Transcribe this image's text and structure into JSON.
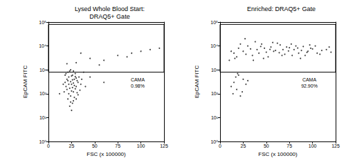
{
  "chart_data": [
    {
      "type": "scatter",
      "title": "Lysed Whole Blood Start:\nDRAQ5+ Gate",
      "x_label": "FSC (x 100000)",
      "y_label": "EpCAM FITC",
      "color": "#111111",
      "marker": "dot",
      "log": "y",
      "grid": false,
      "xlim": [
        0,
        125
      ],
      "xticks": [
        0,
        25,
        50,
        75,
        100,
        125
      ],
      "ylim": [
        1,
        100000
      ],
      "yticks": [
        {
          "value": 1,
          "label": "10⁰"
        },
        {
          "value": 10,
          "label": "10¹"
        },
        {
          "value": 100,
          "label": "10²"
        },
        {
          "value": 1000,
          "label": "10³"
        },
        {
          "value": 10000,
          "label": "10⁴"
        },
        {
          "value": 100000,
          "label": "10⁵"
        }
      ],
      "gate": {
        "x": [
          0,
          125
        ],
        "y": [
          800,
          80000
        ],
        "label": "CAMA",
        "percent": "0.98%"
      },
      "x": [
        18,
        20,
        22,
        24,
        25,
        26,
        27,
        28,
        30,
        32,
        21,
        23,
        26,
        29,
        31,
        19,
        24,
        27,
        33,
        22,
        25,
        28,
        30,
        20,
        26,
        24,
        17,
        35,
        23,
        29,
        21,
        27,
        25,
        31,
        18,
        34,
        22,
        26,
        28,
        24,
        19,
        32,
        25,
        27,
        23,
        36,
        16,
        30,
        21,
        29,
        40,
        45,
        60,
        12,
        38,
        30,
        45,
        60,
        75,
        90,
        100,
        110,
        20,
        55,
        85,
        120,
        35
      ],
      "values": [
        300,
        150,
        500,
        80,
        250,
        600,
        120,
        400,
        200,
        90,
        60,
        900,
        40,
        700,
        350,
        200,
        1000,
        50,
        500,
        250,
        130,
        70,
        450,
        400,
        180,
        320,
        120,
        250,
        30,
        160,
        800,
        280,
        550,
        110,
        600,
        140,
        100,
        380,
        220,
        45,
        700,
        300,
        20,
        900,
        170,
        400,
        250,
        60,
        350,
        520,
        200,
        500,
        300,
        100,
        800,
        2000,
        3000,
        2500,
        4000,
        5000,
        6000,
        7000,
        1800,
        1600,
        3500,
        8000,
        5000
      ]
    },
    {
      "type": "scatter",
      "title": "Enriched: DRAQ5+ Gate",
      "x_label": "FSC (x 100000)",
      "y_label": "EpCAM FITC",
      "color": "#111111",
      "marker": "dot",
      "log": "y",
      "grid": false,
      "xlim": [
        0,
        125
      ],
      "xticks": [
        0,
        25,
        50,
        75,
        100,
        125
      ],
      "ylim": [
        1,
        100000
      ],
      "yticks": [
        {
          "value": 1,
          "label": "10⁰"
        },
        {
          "value": 10,
          "label": "10¹"
        },
        {
          "value": 100,
          "label": "10²"
        },
        {
          "value": 1000,
          "label": "10³"
        },
        {
          "value": 10000,
          "label": "10⁴"
        },
        {
          "value": 100000,
          "label": "10⁵"
        }
      ],
      "gate": {
        "x": [
          0,
          125
        ],
        "y": [
          800,
          80000
        ],
        "label": "CAMA",
        "percent": "92.90%"
      },
      "x": [
        15,
        20,
        25,
        30,
        35,
        40,
        45,
        50,
        55,
        60,
        65,
        70,
        75,
        80,
        85,
        90,
        95,
        100,
        105,
        110,
        18,
        22,
        28,
        33,
        38,
        42,
        48,
        52,
        58,
        62,
        68,
        72,
        78,
        82,
        88,
        92,
        98,
        103,
        108,
        115,
        120,
        12,
        27,
        47,
        57,
        67,
        77,
        87,
        97,
        36,
        44,
        54,
        64,
        74,
        84,
        94,
        118,
        10,
        16,
        15,
        18,
        20,
        22,
        25,
        12,
        28,
        17,
        14,
        30,
        24,
        19
      ],
      "values": [
        5000,
        8000,
        6000,
        10000,
        4000,
        7000,
        12000,
        5500,
        9000,
        6500,
        11000,
        4500,
        8500,
        7000,
        5000,
        9500,
        6000,
        7500,
        5000,
        6500,
        3500,
        12000,
        4500,
        7500,
        15000,
        5000,
        8000,
        3500,
        6000,
        13000,
        7000,
        9000,
        4000,
        10000,
        6500,
        4000,
        8000,
        10000,
        4500,
        7000,
        5500,
        6000,
        20000,
        3000,
        14000,
        4000,
        12000,
        3000,
        11000,
        2500,
        9500,
        7200,
        5200,
        6200,
        8200,
        5400,
        9000,
        2500,
        3000,
        300,
        150,
        600,
        80,
        400,
        200,
        250,
        500,
        100,
        350,
        120,
        700
      ]
    }
  ]
}
